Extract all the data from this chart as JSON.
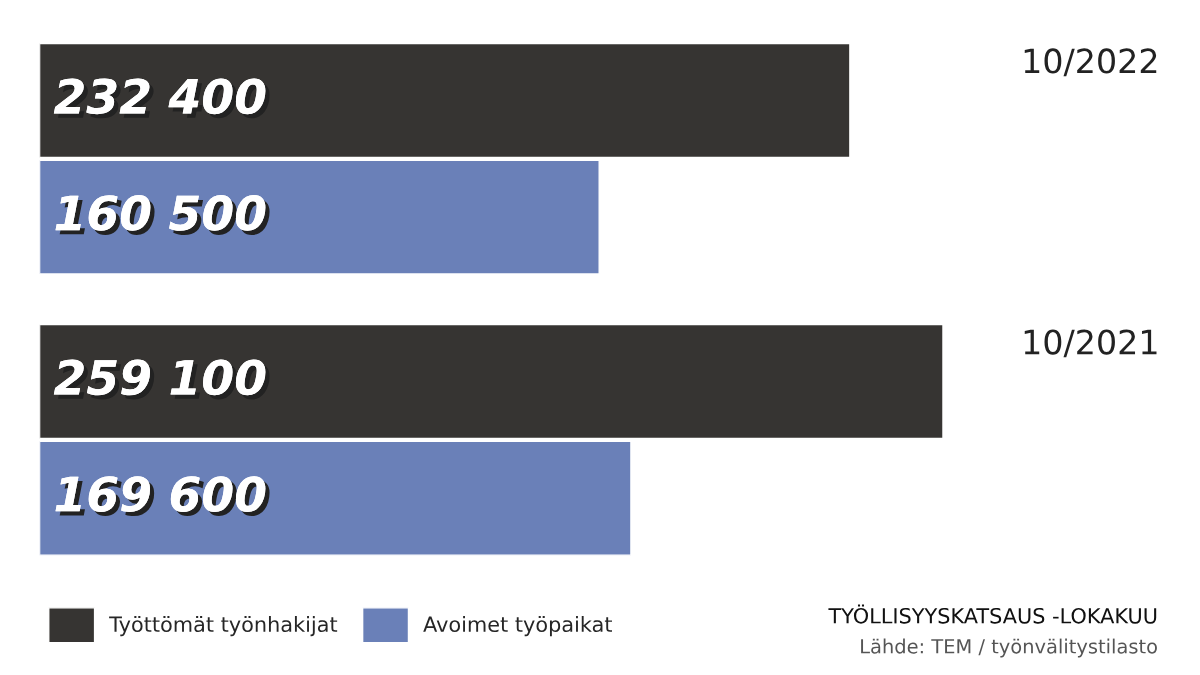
{
  "chart_data": {
    "type": "bar",
    "orientation": "horizontal",
    "categories": [
      "10/2022",
      "10/2021"
    ],
    "series": [
      {
        "name": "Työttömät työnhakijat",
        "color": "#363432",
        "values": [
          232400,
          259100
        ],
        "value_labels": [
          "232 400",
          "259 100"
        ]
      },
      {
        "name": "Avoimet työpaikat",
        "color": "#6a80b8",
        "values": [
          160500,
          169600
        ],
        "value_labels": [
          "160 500",
          "169 600"
        ]
      }
    ],
    "legend": "bottom left",
    "annotations": [
      "TYÖLLISYYSKATSAUS -LOKAKUU",
      "Lähde: TEM / työnvälitystilasto"
    ]
  }
}
